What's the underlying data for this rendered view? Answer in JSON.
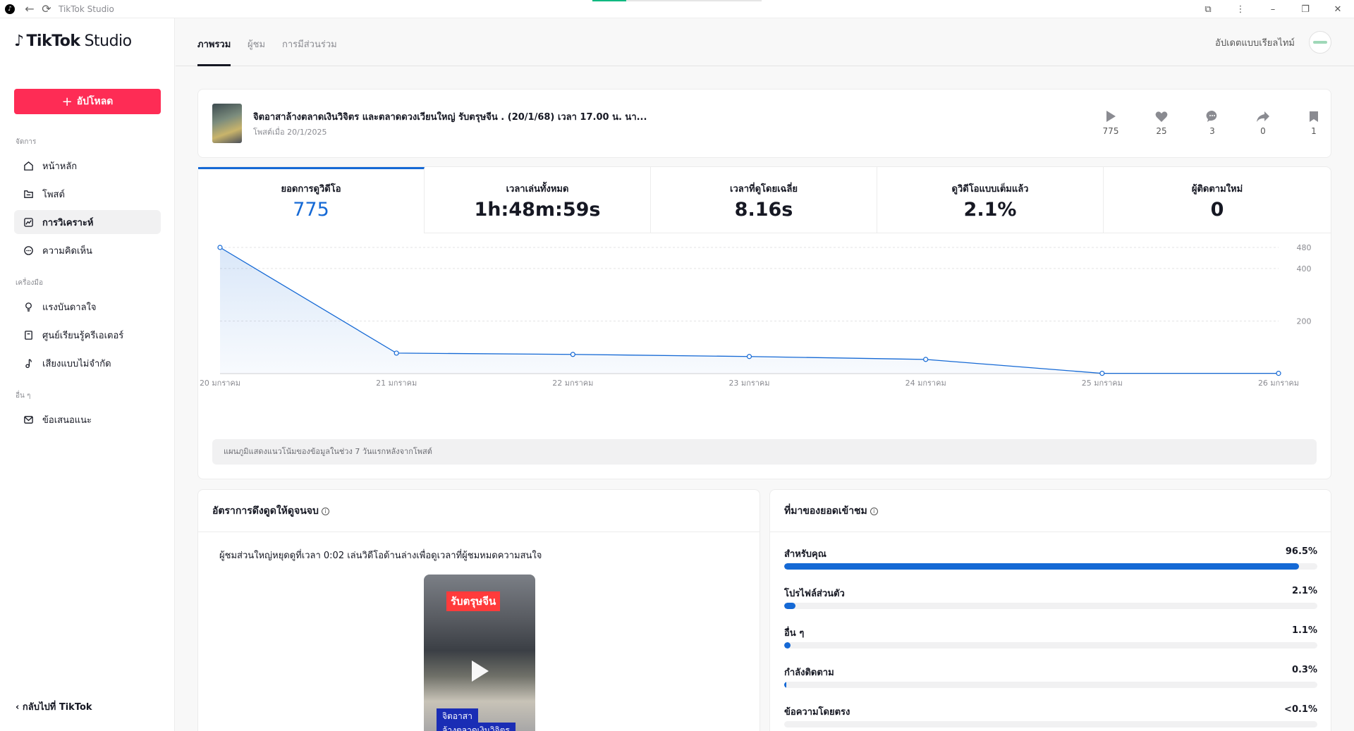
{
  "window": {
    "title": "TikTok Studio",
    "logo_icon": "tiktok-logo-icon",
    "back_icon": "arrow-left-icon",
    "reload_icon": "reload-icon",
    "extension_icon": "puzzle-icon",
    "menu_icon": "more-vertical-icon",
    "minimize_icon": "minimize-icon",
    "restore_icon": "restore-icon",
    "close_icon": "close-icon"
  },
  "brand": {
    "name": "TikTok",
    "suffix": "Studio"
  },
  "sidebar": {
    "upload_label": "อัปโหลด",
    "sections": [
      {
        "title": "จัดการ",
        "items": [
          {
            "label": "หน้าหลัก",
            "icon": "home-icon"
          },
          {
            "label": "โพสต์",
            "icon": "folder-icon"
          },
          {
            "label": "การวิเคราะห์",
            "icon": "analytics-icon",
            "active": true
          },
          {
            "label": "ความคิดเห็น",
            "icon": "comment-icon"
          }
        ]
      },
      {
        "title": "เครื่องมือ",
        "items": [
          {
            "label": "แรงบันดาลใจ",
            "icon": "lightbulb-icon"
          },
          {
            "label": "ศูนย์เรียนรู้ครีเอเตอร์",
            "icon": "book-icon"
          },
          {
            "label": "เสียงแบบไม่จำกัด",
            "icon": "music-note-icon"
          }
        ]
      },
      {
        "title": "อื่น ๆ",
        "items": [
          {
            "label": "ข้อเสนอแนะ",
            "icon": "mail-icon"
          }
        ]
      }
    ],
    "back_label": "‹ กลับไปที่ TikTok"
  },
  "header": {
    "tabs": [
      {
        "label": "ภาพรวม",
        "active": true
      },
      {
        "label": "ผู้ชม",
        "active": false
      },
      {
        "label": "การมีส่วนร่วม",
        "active": false
      }
    ],
    "realtime_label": "อัปเดตแบบเรียลไทม์"
  },
  "video": {
    "title": "จิตอาสาล้างตลาดเงินวิจิตร และตลาดดวงเวียนใหญ่ รับตรุษจีน . (20/1/68) เวลา 17.00 น. นา...",
    "posted": "โพสต์เมื่อ 20/1/2025",
    "stats": [
      {
        "icon": "play-icon",
        "value": "775"
      },
      {
        "icon": "heart-icon",
        "value": "25"
      },
      {
        "icon": "comment-icon",
        "value": "3"
      },
      {
        "icon": "share-icon",
        "value": "0"
      },
      {
        "icon": "bookmark-icon",
        "value": "1"
      }
    ]
  },
  "metrics": [
    {
      "label": "ยอดการดูวิดีโอ",
      "value": "775",
      "active": true
    },
    {
      "label": "เวลาเล่นทั้งหมด",
      "value": "1h:48m:59s"
    },
    {
      "label": "เวลาที่ดูโดยเฉลี่ย",
      "value": "8.16s"
    },
    {
      "label": "ดูวิดีโอแบบเต็มแล้ว",
      "value": "2.1%"
    },
    {
      "label": "ผู้ติดตามใหม่",
      "value": "0"
    }
  ],
  "chart_data": {
    "type": "area",
    "categories": [
      "20 มกราคม",
      "21 มกราคม",
      "22 มกราคม",
      "23 มกราคม",
      "24 มกราคม",
      "25 มกราคม",
      "26 มกราคม"
    ],
    "series": [
      {
        "values": [
          480,
          78,
          73,
          65,
          54,
          1,
          1
        ]
      }
    ],
    "ylim": [
      0,
      480
    ],
    "yticks": [
      200,
      400,
      480
    ],
    "grid": true,
    "color": "#1569d5",
    "note": "แผนภูมิแสดงแนวโน้มของข้อมูลในช่วง 7 วันแรกหลังจากโพสต์"
  },
  "retention": {
    "title": "อัตราการดึงดูดให้ดูจนจบ",
    "text": "ผู้ชมส่วนใหญ่หยุดดูที่เวลา 0:02 เล่นวิดีโอด้านล่างเพื่อดูเวลาที่ผู้ชมหมดความสนใจ",
    "preview_tag": "รับตรุษจีน",
    "preview_caption_1": "จิตอาสา",
    "preview_caption_2": "ล้างตลาดเงินวิจิตร",
    "play_icon": "play-icon"
  },
  "sources": {
    "title": "ที่มาของยอดเข้าชม",
    "rows": [
      {
        "label": "สำหรับคุณ",
        "pct_text": "96.5%",
        "fraction": 0.965
      },
      {
        "label": "โปรไฟล์ส่วนตัว",
        "pct_text": "2.1%",
        "fraction": 0.021
      },
      {
        "label": "อื่น ๆ",
        "pct_text": "1.1%",
        "fraction": 0.011
      },
      {
        "label": "กำลังติดตาม",
        "pct_text": "0.3%",
        "fraction": 0.003
      },
      {
        "label": "ข้อความโดยตรง",
        "pct_text": "<0.1%",
        "fraction": 0.0
      }
    ]
  }
}
